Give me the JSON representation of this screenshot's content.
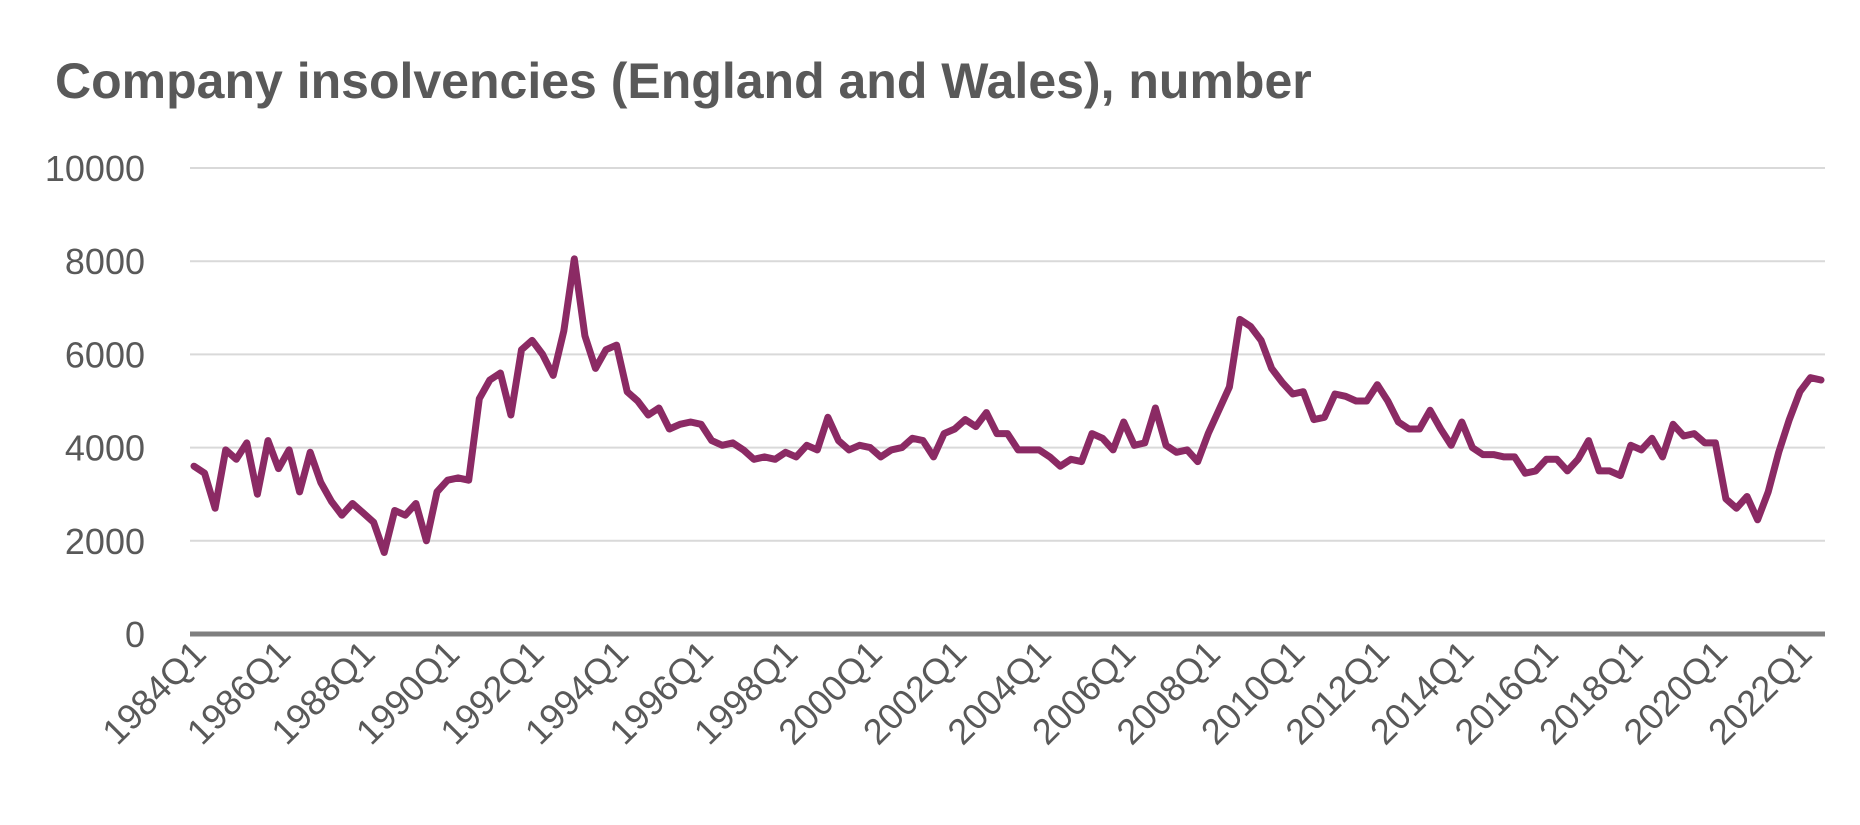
{
  "chart_data": {
    "type": "line",
    "title": "Company insolvencies (England and Wales), number",
    "xlabel": "",
    "ylabel": "",
    "ylim": [
      0,
      10000
    ],
    "yticks": [
      0,
      2000,
      4000,
      6000,
      8000,
      10000
    ],
    "grid": true,
    "legend": "none",
    "x_start": "1984Q1",
    "x_tick_labels": [
      "1984Q1",
      "1986Q1",
      "1988Q1",
      "1990Q1",
      "1992Q1",
      "1994Q1",
      "1996Q1",
      "1998Q1",
      "2000Q1",
      "2002Q1",
      "2004Q1",
      "2006Q1",
      "2008Q1",
      "2010Q1",
      "2012Q1",
      "2014Q1",
      "2016Q1",
      "2018Q1",
      "2020Q1",
      "2022Q1"
    ],
    "series": [
      {
        "color": "#8B2A64",
        "values": [
          3600,
          3450,
          2700,
          3950,
          3750,
          4100,
          3000,
          4150,
          3550,
          3950,
          3050,
          3900,
          3250,
          2850,
          2550,
          2800,
          2600,
          2400,
          1750,
          2650,
          2550,
          2800,
          2000,
          3050,
          3300,
          3350,
          3300,
          5050,
          5450,
          5600,
          4700,
          6100,
          6300,
          6000,
          5550,
          6500,
          8050,
          6400,
          5700,
          6100,
          6200,
          5200,
          5000,
          4700,
          4850,
          4400,
          4500,
          4550,
          4500,
          4150,
          4050,
          4100,
          3950,
          3750,
          3800,
          3750,
          3900,
          3800,
          4050,
          3950,
          4650,
          4150,
          3950,
          4050,
          4000,
          3800,
          3950,
          4000,
          4200,
          4150,
          3800,
          4300,
          4400,
          4600,
          4450,
          4750,
          4300,
          4300,
          3950,
          3950,
          3950,
          3800,
          3600,
          3750,
          3700,
          4300,
          4200,
          3950,
          4550,
          4050,
          4100,
          4850,
          4050,
          3900,
          3950,
          3700,
          4300,
          4800,
          5300,
          6750,
          6600,
          6300,
          5700,
          5400,
          5150,
          5200,
          4600,
          4650,
          5150,
          5100,
          5000,
          5000,
          5350,
          5000,
          4550,
          4400,
          4400,
          4800,
          4400,
          4050,
          4550,
          4000,
          3850,
          3850,
          3800,
          3800,
          3450,
          3500,
          3750,
          3750,
          3500,
          3750,
          4150,
          3500,
          3500,
          3400,
          4050,
          3950,
          4200,
          3800,
          4500,
          4250,
          4300,
          4100,
          4100,
          2900,
          2700,
          2950,
          2450,
          3050,
          3900,
          4600,
          5200,
          5500,
          5450
        ]
      }
    ]
  }
}
